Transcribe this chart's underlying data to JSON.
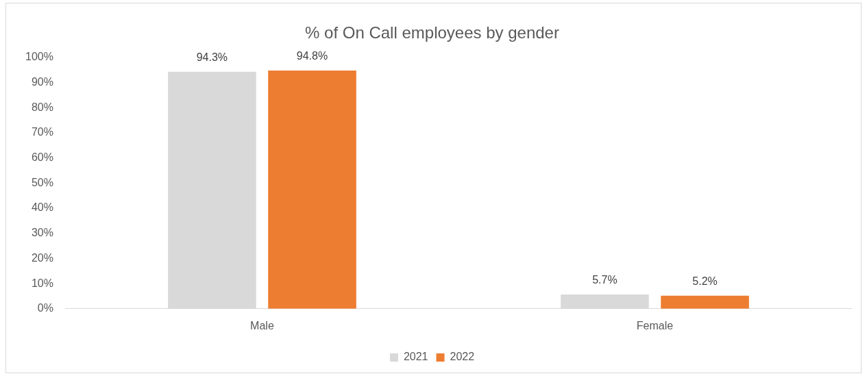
{
  "chart_data": {
    "type": "bar",
    "title": "% of On Call employees by gender",
    "categories": [
      "Male",
      "Female"
    ],
    "series": [
      {
        "name": "2021",
        "color": "#d9d9d9",
        "values": [
          94.3,
          5.7
        ],
        "value_labels": [
          "94.3%",
          "5.7%"
        ]
      },
      {
        "name": "2022",
        "color": "#ed7d31",
        "values": [
          94.8,
          5.2
        ],
        "value_labels": [
          "94.8%",
          "5.2%"
        ]
      }
    ],
    "ylim": [
      0,
      100
    ],
    "yticks": [
      {
        "value": 0,
        "label": "0%"
      },
      {
        "value": 10,
        "label": "10%"
      },
      {
        "value": 20,
        "label": "20%"
      },
      {
        "value": 30,
        "label": "30%"
      },
      {
        "value": 40,
        "label": "40%"
      },
      {
        "value": 50,
        "label": "50%"
      },
      {
        "value": 60,
        "label": "60%"
      },
      {
        "value": 70,
        "label": "70%"
      },
      {
        "value": 80,
        "label": "80%"
      },
      {
        "value": 90,
        "label": "90%"
      },
      {
        "value": 100,
        "label": "100%"
      }
    ],
    "grid": false,
    "legend": "bottom"
  }
}
